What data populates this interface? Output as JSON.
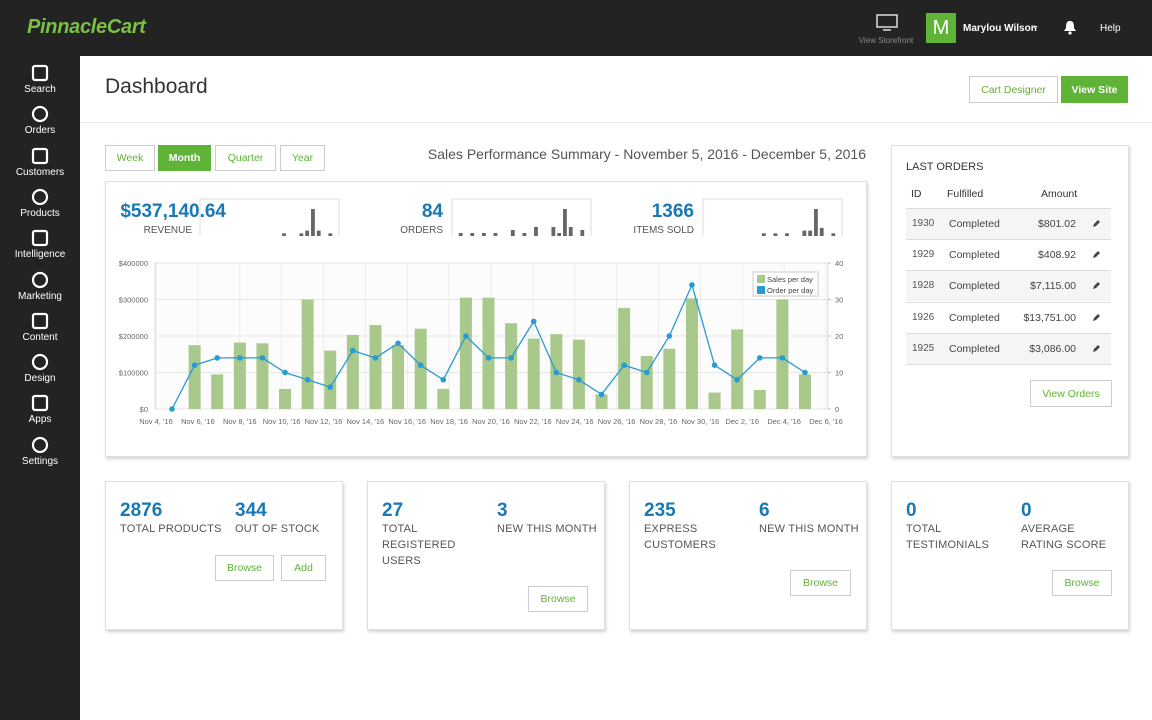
{
  "header": {
    "brand": "PinnacleCart",
    "storefront": "View Storefront",
    "avatar": "M",
    "user": "Marylou Wilson",
    "help": "Help"
  },
  "sidebar": [
    "Search",
    "Orders",
    "Customers",
    "Products",
    "Intelligence",
    "Marketing",
    "Content",
    "Design",
    "Apps",
    "Settings"
  ],
  "page": {
    "title": "Dashboard",
    "actions": [
      "Cart Designer",
      "View Site"
    ]
  },
  "periods": {
    "options": [
      "Week",
      "Month",
      "Quarter",
      "Year"
    ],
    "active": "Month"
  },
  "chart_data": {
    "type": "bar",
    "title": "Sales Performance Summary - November 5, 2016 - December 5, 2016",
    "kpis": [
      {
        "value": "$537,140.64",
        "label": "REVENUE",
        "spark": [
          0,
          0,
          0,
          0,
          0,
          0,
          0,
          0,
          0,
          0,
          0,
          0,
          0,
          0,
          1,
          0,
          0,
          1,
          2,
          10,
          2,
          0,
          1,
          0
        ]
      },
      {
        "value": "84",
        "label": "ORDERS",
        "spark": [
          0,
          1,
          0,
          1,
          0,
          1,
          0,
          1,
          0,
          0,
          2,
          0,
          1,
          0,
          3,
          0,
          0,
          3,
          1,
          9,
          3,
          0,
          2,
          0
        ]
      },
      {
        "value": "1366",
        "label": "ITEMS SOLD",
        "spark": [
          0,
          0,
          0,
          0,
          0,
          0,
          0,
          0,
          0,
          0,
          1,
          0,
          1,
          0,
          1,
          0,
          0,
          2,
          2,
          10,
          3,
          0,
          1,
          0
        ]
      }
    ],
    "categories": [
      null,
      null,
      null,
      null,
      null,
      null,
      null,
      null,
      null,
      null,
      null,
      null,
      null,
      null,
      null,
      null,
      null,
      null,
      null,
      null,
      null,
      null,
      null,
      null,
      null,
      null,
      null,
      null,
      null
    ],
    "xticks": [
      "Nov 4, '16",
      "Nov 6, '16",
      "Nov 8, '16",
      "Nov 10, '16",
      "Nov 12, '16",
      "Nov 14, '16",
      "Nov 16, '16",
      "Nov 18, '16",
      "Nov 20, '16",
      "Nov 22, '16",
      "Nov 24, '16",
      "Nov 26, '16",
      "Nov 28, '16",
      "Nov 30, '16",
      "Dec 2, '16",
      "Dec 4, '16",
      "Dec 6, '16"
    ],
    "series": [
      {
        "name": "Sales per day",
        "type": "bar",
        "color": "#a9c98c",
        "values": [
          0,
          175000,
          95000,
          182000,
          180000,
          55000,
          300000,
          160000,
          203000,
          230000,
          175000,
          220000,
          55000,
          305000,
          305000,
          235000,
          193000,
          205000,
          190000,
          40000,
          277000,
          145000,
          165000,
          303000,
          45000,
          218000,
          52000,
          300000,
          95000
        ]
      },
      {
        "name": "Order per day",
        "type": "line",
        "axis": "y2",
        "color": "#2a9bd2",
        "values": [
          0,
          12,
          14,
          14,
          14,
          10,
          8,
          6,
          16,
          14,
          18,
          12,
          8,
          20,
          14,
          14,
          24,
          10,
          8,
          4,
          12,
          10,
          20,
          34,
          12,
          8,
          14,
          14,
          10
        ]
      }
    ],
    "ylim": [
      0,
      400000
    ],
    "yticks": [
      {
        "value": 0,
        "label": "$0"
      },
      {
        "value": 100000,
        "label": "$100000"
      },
      {
        "value": 200000,
        "label": "$200000"
      },
      {
        "value": 300000,
        "label": "$300000"
      },
      {
        "value": 400000,
        "label": "$400000"
      }
    ],
    "y2lim": [
      0,
      40
    ],
    "y2ticks": [
      0,
      10,
      20,
      30,
      40
    ],
    "grid": true,
    "legend": "top-right"
  },
  "last_orders": {
    "title": "LAST ORDERS",
    "columns": [
      "ID",
      "Fulfilled",
      "Amount"
    ],
    "rows": [
      [
        "1930",
        "Completed",
        "$801.02"
      ],
      [
        "1929",
        "Completed",
        "$408.92"
      ],
      [
        "1928",
        "Completed",
        "$7,115.00"
      ],
      [
        "1926",
        "Completed",
        "$13,751.00"
      ],
      [
        "1925",
        "Completed",
        "$3,086.00"
      ]
    ],
    "action": "View Orders"
  },
  "cards": [
    {
      "stats": [
        {
          "value": "2876",
          "label": "TOTAL PRODUCTS"
        },
        {
          "value": "344",
          "label": "OUT OF STOCK"
        }
      ],
      "actions": [
        "Browse",
        "Add"
      ]
    },
    {
      "stats": [
        {
          "value": "27",
          "label": "TOTAL REGISTERED USERS"
        },
        {
          "value": "3",
          "label": "NEW THIS MONTH"
        }
      ],
      "actions": [
        "Browse"
      ]
    },
    {
      "stats": [
        {
          "value": "235",
          "label": "EXPRESS CUSTOMERS"
        },
        {
          "value": "6",
          "label": "NEW THIS MONTH"
        }
      ],
      "actions": [
        "Browse"
      ]
    },
    {
      "stats": [
        {
          "value": "0",
          "label": "TOTAL TESTIMONIALS"
        },
        {
          "value": "0",
          "label": "AVERAGE RATING SCORE"
        }
      ],
      "actions": [
        "Browse"
      ]
    }
  ]
}
